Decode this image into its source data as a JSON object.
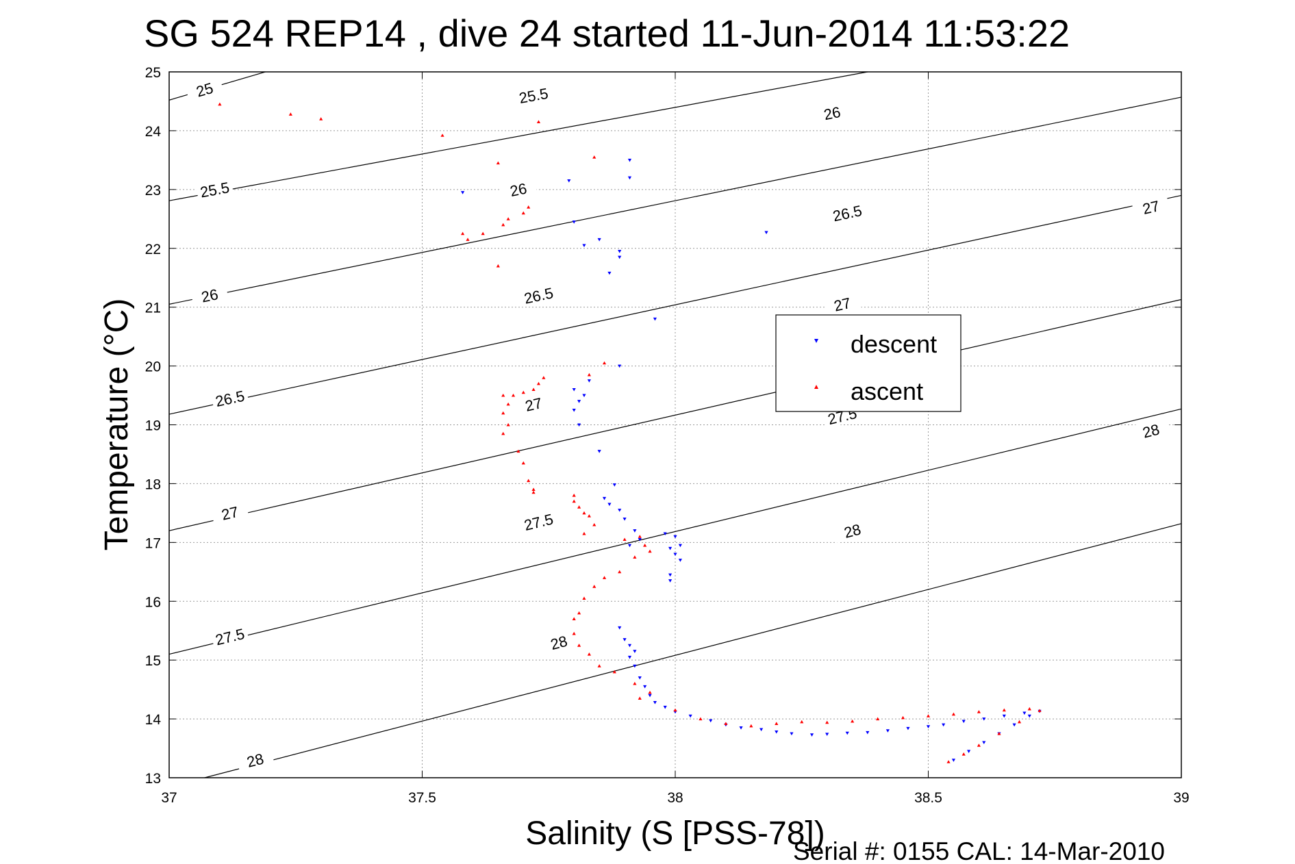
{
  "chart_data": {
    "type": "scatter",
    "title": "SG 524   REP14  , dive 24 started 11-Jun-2014 11:53:22",
    "xlabel": "Salinity (S [PSS-78])",
    "ylabel": "Temperature (°C)",
    "xlim": [
      37,
      39
    ],
    "ylim": [
      13,
      25
    ],
    "xticks": [
      "37",
      "37.5",
      "38",
      "38.5",
      "39"
    ],
    "yticks": [
      "13",
      "14",
      "15",
      "16",
      "17",
      "18",
      "19",
      "20",
      "21",
      "22",
      "23",
      "24",
      "25"
    ],
    "grid": true,
    "legend_position": "center-right",
    "footer": "Serial #: 0155  CAL: 14-Mar-2010",
    "contours": [
      {
        "level": "25",
        "x": [
          37,
          37.19
        ],
        "y": [
          24.52,
          25.0
        ],
        "labels": [
          [
            37.07,
            24.7
          ]
        ]
      },
      {
        "level": "25.5",
        "x": [
          37,
          38.38
        ],
        "y": [
          22.81,
          25.0
        ],
        "labels": [
          [
            37.09,
            23.0
          ],
          [
            37.72,
            24.6
          ]
        ]
      },
      {
        "level": "26",
        "x": [
          37,
          39
        ],
        "y": [
          21.05,
          24.57
        ],
        "labels": [
          [
            37.08,
            21.2
          ],
          [
            37.69,
            23.0
          ],
          [
            38.31,
            24.3
          ]
        ]
      },
      {
        "level": "26.5",
        "x": [
          37,
          39
        ],
        "y": [
          19.18,
          22.9
        ],
        "labels": [
          [
            37.12,
            19.45
          ],
          [
            37.73,
            21.2
          ],
          [
            38.34,
            22.6
          ]
        ]
      },
      {
        "level": "27",
        "x": [
          37,
          39
        ],
        "y": [
          17.2,
          21.13
        ],
        "labels": [
          [
            37.12,
            17.5
          ],
          [
            37.72,
            19.35
          ],
          [
            38.33,
            21.05
          ],
          [
            38.94,
            22.7
          ]
        ]
      },
      {
        "level": "27.5",
        "x": [
          37,
          39
        ],
        "y": [
          15.1,
          19.27
        ],
        "labels": [
          [
            37.12,
            15.4
          ],
          [
            37.73,
            17.35
          ],
          [
            38.33,
            19.15
          ]
        ]
      },
      {
        "level": "28",
        "x": [
          37.07,
          39
        ],
        "y": [
          13.0,
          17.32
        ],
        "labels": [
          [
            37.17,
            13.3
          ],
          [
            37.77,
            15.3
          ],
          [
            38.35,
            17.2
          ],
          [
            38.94,
            18.9
          ]
        ]
      }
    ],
    "series": [
      {
        "name": "descent",
        "color": "#0000ff",
        "marker": "triangle-down",
        "points": [
          [
            37.58,
            22.95
          ],
          [
            37.79,
            23.15
          ],
          [
            37.91,
            23.5
          ],
          [
            37.91,
            23.2
          ],
          [
            37.8,
            22.45
          ],
          [
            37.82,
            22.05
          ],
          [
            37.85,
            22.15
          ],
          [
            37.89,
            21.95
          ],
          [
            37.89,
            21.85
          ],
          [
            37.87,
            21.58
          ],
          [
            38.18,
            22.27
          ],
          [
            37.96,
            20.8
          ],
          [
            37.89,
            20.0
          ],
          [
            37.83,
            19.75
          ],
          [
            37.8,
            19.6
          ],
          [
            37.82,
            19.5
          ],
          [
            37.81,
            19.4
          ],
          [
            37.8,
            19.25
          ],
          [
            37.81,
            19.0
          ],
          [
            37.85,
            18.55
          ],
          [
            37.88,
            17.98
          ],
          [
            37.86,
            17.75
          ],
          [
            37.87,
            17.65
          ],
          [
            37.89,
            17.55
          ],
          [
            37.9,
            17.4
          ],
          [
            37.92,
            17.2
          ],
          [
            37.93,
            17.05
          ],
          [
            37.91,
            16.95
          ],
          [
            37.98,
            17.15
          ],
          [
            38.0,
            17.1
          ],
          [
            38.01,
            16.95
          ],
          [
            37.99,
            16.9
          ],
          [
            38.0,
            16.8
          ],
          [
            38.01,
            16.7
          ],
          [
            37.99,
            16.45
          ],
          [
            37.99,
            16.35
          ],
          [
            37.89,
            15.55
          ],
          [
            37.9,
            15.35
          ],
          [
            37.91,
            15.25
          ],
          [
            37.92,
            15.15
          ],
          [
            37.91,
            15.05
          ],
          [
            37.92,
            14.9
          ],
          [
            37.93,
            14.7
          ],
          [
            37.94,
            14.55
          ],
          [
            37.95,
            14.4
          ],
          [
            37.96,
            14.28
          ],
          [
            37.98,
            14.2
          ],
          [
            38.0,
            14.12
          ],
          [
            38.03,
            14.05
          ],
          [
            38.07,
            13.97
          ],
          [
            38.1,
            13.9
          ],
          [
            38.13,
            13.85
          ],
          [
            38.17,
            13.82
          ],
          [
            38.2,
            13.78
          ],
          [
            38.23,
            13.75
          ],
          [
            38.27,
            13.73
          ],
          [
            38.3,
            13.74
          ],
          [
            38.34,
            13.76
          ],
          [
            38.38,
            13.77
          ],
          [
            38.42,
            13.8
          ],
          [
            38.46,
            13.84
          ],
          [
            38.5,
            13.87
          ],
          [
            38.53,
            13.9
          ],
          [
            38.57,
            13.96
          ],
          [
            38.61,
            14.0
          ],
          [
            38.65,
            14.05
          ],
          [
            38.69,
            14.1
          ],
          [
            38.72,
            14.13
          ],
          [
            38.7,
            14.05
          ],
          [
            38.67,
            13.9
          ],
          [
            38.64,
            13.75
          ],
          [
            38.61,
            13.6
          ],
          [
            38.58,
            13.45
          ],
          [
            38.55,
            13.3
          ]
        ]
      },
      {
        "name": "ascent",
        "color": "#ff0000",
        "marker": "triangle-up",
        "points": [
          [
            37.1,
            24.45
          ],
          [
            37.24,
            24.28
          ],
          [
            37.3,
            24.2
          ],
          [
            37.54,
            23.92
          ],
          [
            37.73,
            24.15
          ],
          [
            37.65,
            23.45
          ],
          [
            37.84,
            23.55
          ],
          [
            37.58,
            22.25
          ],
          [
            37.59,
            22.15
          ],
          [
            37.62,
            22.25
          ],
          [
            37.66,
            22.4
          ],
          [
            37.67,
            22.5
          ],
          [
            37.7,
            22.6
          ],
          [
            37.71,
            22.7
          ],
          [
            37.65,
            21.7
          ],
          [
            37.86,
            20.05
          ],
          [
            37.83,
            19.85
          ],
          [
            37.74,
            19.8
          ],
          [
            37.73,
            19.7
          ],
          [
            37.72,
            19.6
          ],
          [
            37.7,
            19.55
          ],
          [
            37.68,
            19.5
          ],
          [
            37.66,
            19.5
          ],
          [
            37.67,
            19.35
          ],
          [
            37.66,
            19.2
          ],
          [
            37.67,
            19.0
          ],
          [
            37.66,
            18.85
          ],
          [
            37.69,
            18.55
          ],
          [
            37.7,
            18.35
          ],
          [
            37.71,
            18.05
          ],
          [
            37.72,
            17.9
          ],
          [
            37.72,
            17.85
          ],
          [
            37.8,
            17.8
          ],
          [
            37.8,
            17.7
          ],
          [
            37.81,
            17.6
          ],
          [
            37.82,
            17.5
          ],
          [
            37.83,
            17.45
          ],
          [
            37.84,
            17.3
          ],
          [
            37.82,
            17.15
          ],
          [
            37.9,
            17.05
          ],
          [
            37.93,
            17.1
          ],
          [
            37.94,
            16.95
          ],
          [
            37.95,
            16.85
          ],
          [
            37.92,
            16.75
          ],
          [
            37.89,
            16.5
          ],
          [
            37.86,
            16.4
          ],
          [
            37.84,
            16.25
          ],
          [
            37.82,
            16.05
          ],
          [
            37.81,
            15.8
          ],
          [
            37.8,
            15.7
          ],
          [
            37.8,
            15.45
          ],
          [
            37.81,
            15.25
          ],
          [
            37.83,
            15.1
          ],
          [
            37.85,
            14.9
          ],
          [
            37.88,
            14.8
          ],
          [
            37.92,
            14.6
          ],
          [
            37.95,
            14.45
          ],
          [
            37.93,
            14.35
          ],
          [
            38.0,
            14.15
          ],
          [
            38.05,
            14.0
          ],
          [
            38.1,
            13.92
          ],
          [
            38.15,
            13.88
          ],
          [
            38.2,
            13.92
          ],
          [
            38.25,
            13.95
          ],
          [
            38.3,
            13.94
          ],
          [
            38.35,
            13.96
          ],
          [
            38.4,
            14.0
          ],
          [
            38.45,
            14.02
          ],
          [
            38.5,
            14.05
          ],
          [
            38.55,
            14.08
          ],
          [
            38.6,
            14.12
          ],
          [
            38.65,
            14.15
          ],
          [
            38.7,
            14.17
          ],
          [
            38.72,
            14.14
          ],
          [
            38.68,
            13.95
          ],
          [
            38.64,
            13.75
          ],
          [
            38.6,
            13.55
          ],
          [
            38.57,
            13.4
          ],
          [
            38.54,
            13.27
          ]
        ]
      }
    ]
  }
}
